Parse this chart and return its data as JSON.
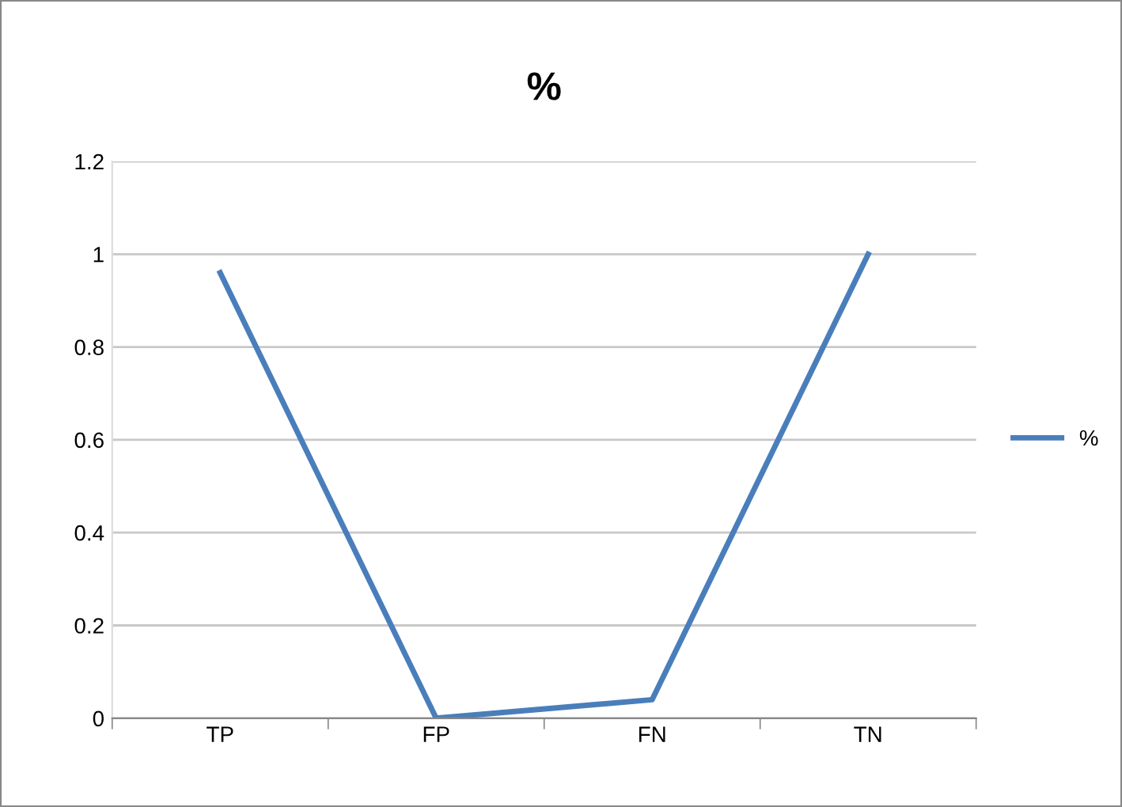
{
  "chart_data": {
    "type": "line",
    "title": "%",
    "categories": [
      "TP",
      "FP",
      "FN",
      "TN"
    ],
    "series": [
      {
        "name": "%",
        "color": "#4a7ebb",
        "values": [
          0.96,
          0,
          0.04,
          1
        ]
      }
    ],
    "ylim": [
      0,
      1.2
    ],
    "yticks": [
      0,
      0.2,
      0.4,
      0.6,
      0.8,
      1,
      1.2
    ],
    "grid": "y",
    "legend": "right",
    "marker": "none",
    "line_style": "solid"
  }
}
